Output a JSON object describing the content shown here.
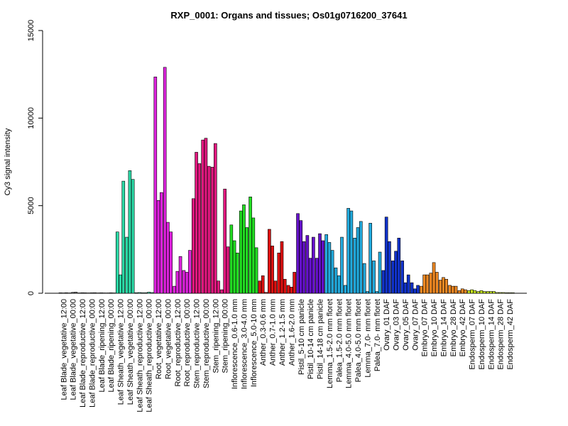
{
  "chart_data": {
    "type": "bar",
    "title": "RXP_0001: Organs and tissues; Os01g0716200_37641",
    "xlabel": "",
    "ylabel": "Cy3 signal intensity",
    "ylim": [
      0,
      15000
    ],
    "yticks": [
      0,
      5000,
      10000,
      15000
    ],
    "grid": false,
    "legend": "none",
    "groups": [
      {
        "label": "Leaf Blade_vegetative_12:00",
        "color": "#555555",
        "values": [
          25,
          20,
          30
        ]
      },
      {
        "label": "Leaf Blade_vegetative_00:00",
        "color": "#555555",
        "values": [
          20,
          50,
          60
        ]
      },
      {
        "label": "Leaf Blade_reproductive_12:00",
        "color": "#555555",
        "values": [
          20,
          30,
          25
        ]
      },
      {
        "label": "Leaf Blade_reproductive_00:00",
        "color": "#555555",
        "values": [
          20,
          25,
          30
        ]
      },
      {
        "label": "Leaf Blade_ripening_12:00",
        "color": "#555555",
        "values": [
          20,
          25,
          20
        ]
      },
      {
        "label": "Leaf Blade_ripening_00:00",
        "color": "#555555",
        "values": [
          20,
          25,
          20
        ]
      },
      {
        "label": "Leaf Sheath_vegetative_12:00",
        "color": "#2bd9a6",
        "values": [
          3500,
          1050,
          6400
        ]
      },
      {
        "label": "Leaf Sheath_vegetative_00:00",
        "color": "#2bd9a6",
        "values": [
          3200,
          7000,
          6500
        ]
      },
      {
        "label": "Leaf Sheath_reproductive_12:00",
        "color": "#2bd9a6",
        "values": [
          30,
          40,
          30
        ]
      },
      {
        "label": "Leaf Sheath_reproductive_00:00",
        "color": "#2bd9a6",
        "values": [
          30,
          60,
          40
        ]
      },
      {
        "label": "Root_vegetative_12:00",
        "color": "#dd22dd",
        "values": [
          12350,
          5300,
          5750
        ]
      },
      {
        "label": "Root_vegetative_00:00",
        "color": "#dd22dd",
        "values": [
          12900,
          4050,
          3500
        ]
      },
      {
        "label": "Root_reproductive_12:00",
        "color": "#dd22dd",
        "values": [
          400,
          1250,
          2100
        ]
      },
      {
        "label": "Root_reproductive_00:00",
        "color": "#dd22dd",
        "values": [
          1300,
          1200,
          2450
        ]
      },
      {
        "label": "Stem_reproductive_12:00",
        "color": "#e0187e",
        "values": [
          5400,
          8050,
          7400
        ]
      },
      {
        "label": "Stem_reproductive_00:00",
        "color": "#e0187e",
        "values": [
          8750,
          8850,
          7250
        ]
      },
      {
        "label": "Stem_ripening_12:00",
        "color": "#e0187e",
        "values": [
          7200,
          8550,
          700
        ]
      },
      {
        "label": "Stem_ripening_00:00",
        "color": "#e0187e",
        "values": [
          200,
          5950,
          2650
        ]
      },
      {
        "label": "Inflorescence_0.6-1.0 mm",
        "color": "#22dd22",
        "values": [
          3900,
          3000,
          2300
        ]
      },
      {
        "label": "Inflorescence_3.0-4.0 mm",
        "color": "#22dd22",
        "values": [
          4700,
          5050,
          3750
        ]
      },
      {
        "label": "Inflorescence_5.0-10 mm",
        "color": "#22dd22",
        "values": [
          5500,
          4300,
          2600
        ]
      },
      {
        "label": "Anther_0.3-0.6 mm",
        "color": "#dd1111",
        "values": [
          700,
          1000,
          50
        ]
      },
      {
        "label": "Anther_0.7-1.0 mm",
        "color": "#dd1111",
        "values": [
          3650,
          2700,
          700
        ]
      },
      {
        "label": "Anther_1.2-1.5 mm",
        "color": "#dd1111",
        "values": [
          2300,
          2950,
          800
        ]
      },
      {
        "label": "Anther_1.6-2.0 mm",
        "color": "#dd1111",
        "values": [
          450,
          350,
          1200
        ]
      },
      {
        "label": "Pistil_5-10 cm panicle",
        "color": "#6611cc",
        "values": [
          4550,
          4150,
          2950
        ]
      },
      {
        "label": "Pistil_10-14 cm panicle",
        "color": "#6611cc",
        "values": [
          3300,
          2000,
          3200
        ]
      },
      {
        "label": "Pistil_14-18 cm panicle",
        "color": "#6611cc",
        "values": [
          2000,
          3400,
          3000
        ]
      },
      {
        "label": "Lemma_1.5-2.0 mm floret",
        "color": "#22aadd",
        "values": [
          3350,
          2900,
          2450
        ]
      },
      {
        "label": "Palea_1.5-2.0 mm floret",
        "color": "#22aadd",
        "values": [
          1450,
          1000,
          3200
        ]
      },
      {
        "label": "Lemma_4.0-5.0 mm floret",
        "color": "#22aadd",
        "values": [
          450,
          4850,
          4700
        ]
      },
      {
        "label": "Palea_4.0-5.0 mm floret",
        "color": "#22aadd",
        "values": [
          3150,
          3750,
          4100
        ]
      },
      {
        "label": "Lemma_7.0- mm floret",
        "color": "#22aadd",
        "values": [
          1700,
          100,
          4000
        ]
      },
      {
        "label": "Palea_7.0- mm floret",
        "color": "#22aadd",
        "values": [
          1850,
          100,
          2350
        ]
      },
      {
        "label": "Ovary_01 DAF",
        "color": "#1133cc",
        "values": [
          1300,
          4350,
          2950
        ]
      },
      {
        "label": "Ovary_03 DAF",
        "color": "#1133cc",
        "values": [
          1850,
          2400,
          3150
        ]
      },
      {
        "label": "Ovary_05 DAF",
        "color": "#1133cc",
        "values": [
          1850,
          600,
          1050
        ]
      },
      {
        "label": "Ovary_07 DAF",
        "color": "#1133cc",
        "values": [
          600,
          250,
          450
        ]
      },
      {
        "label": "Embryo_07 DAF",
        "color": "#ee8822",
        "values": [
          400,
          1050,
          1050
        ]
      },
      {
        "label": "Embryo_10 DAF",
        "color": "#ee8822",
        "values": [
          1150,
          1750,
          1200
        ]
      },
      {
        "label": "Embryo_14 DAF",
        "color": "#ee8822",
        "values": [
          750,
          900,
          800
        ]
      },
      {
        "label": "Embryo_28 DAF",
        "color": "#ee8822",
        "values": [
          450,
          400,
          400
        ]
      },
      {
        "label": "Embryo_42 DAF",
        "color": "#ee8822",
        "values": [
          150,
          250,
          200
        ]
      },
      {
        "label": "Endosperm_07 DAF",
        "color": "#ccee22",
        "values": [
          150,
          200,
          150
        ]
      },
      {
        "label": "Endosperm_10 DAF",
        "color": "#ccee22",
        "values": [
          100,
          150,
          100
        ]
      },
      {
        "label": "Endosperm_14 DAF",
        "color": "#ccee22",
        "values": [
          100,
          100,
          100
        ]
      },
      {
        "label": "Endosperm_28 DAF",
        "color": "#ccee22",
        "values": [
          40,
          40,
          40
        ]
      },
      {
        "label": "Endosperm_42 DAF",
        "color": "#ccee22",
        "values": [
          30,
          30,
          30
        ]
      }
    ]
  }
}
